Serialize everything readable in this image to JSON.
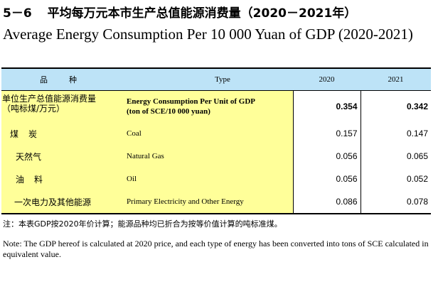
{
  "title": {
    "number": "5－6",
    "chinese": "平均每万元本市生产总值能源消费量（2020－2021年）",
    "english": "Average Energy Consumption Per 10 000 Yuan of GDP (2020-2021)"
  },
  "table": {
    "headers": {
      "variety_cn": "品种",
      "type_en": "Type",
      "year1": "2020",
      "year2": "2021"
    },
    "rows": [
      {
        "cn_line1": "单位生产总值能源消费量",
        "cn_line2": "（吨标煤/万元）",
        "en_line1": "Energy Consumption Per Unit of GDP",
        "en_line2": "(ton of SCE/10 000 yuan)",
        "v2020": "0.354",
        "v2021": "0.342"
      },
      {
        "cn": "煤炭",
        "en": "Coal",
        "v2020": "0.157",
        "v2021": "0.147"
      },
      {
        "cn": "天然气",
        "en": "Natural Gas",
        "v2020": "0.056",
        "v2021": "0.065"
      },
      {
        "cn": "油料",
        "en": "Oil",
        "v2020": "0.056",
        "v2021": "0.052"
      },
      {
        "cn": "一次电力及其他能源",
        "en": "Primary Electricity and Other Energy",
        "v2020": "0.086",
        "v2021": "0.078"
      }
    ]
  },
  "notes": {
    "chinese": "注：本表GDP按2020年价计算；能源品种均已折合为按等价值计算的吨标准煤。",
    "english": "Note: The GDP hereof is calculated at 2020 price, and each type of energy has been converted into tons of SCE calculated in equivalent value."
  }
}
